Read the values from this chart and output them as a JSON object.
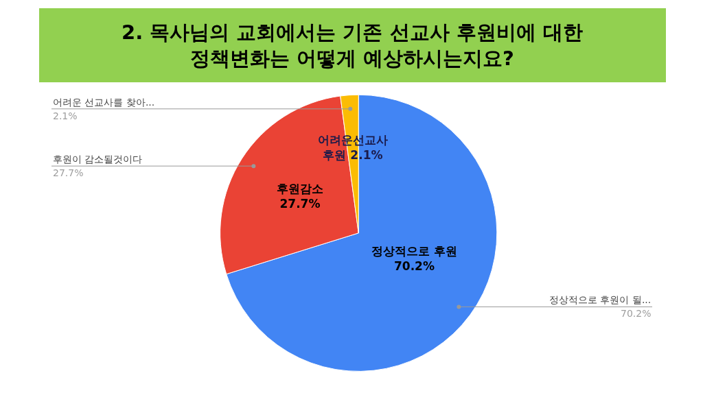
{
  "chart_data": {
    "type": "pie",
    "title": "2. 목사님의 교회에서는 기존 선교사 후원비에 대한\n정책변화는 어떻게 예상하시는지요?",
    "categories": [
      "정상적으로 후원이 될...",
      "후원이 감소될것이다",
      "어려운 선교사를 찾아..."
    ],
    "values": [
      70.2,
      27.7,
      2.1
    ],
    "colors": [
      "#4285f4",
      "#ea4335",
      "#fbbc04"
    ],
    "value_labels": [
      "정상적으로 후원\n70.2%",
      "후원감소\n27.7%",
      "어려운선교사\n후원 2.1%"
    ],
    "annotations": [
      "70.2%",
      "27.7%",
      "2.1%"
    ]
  }
}
